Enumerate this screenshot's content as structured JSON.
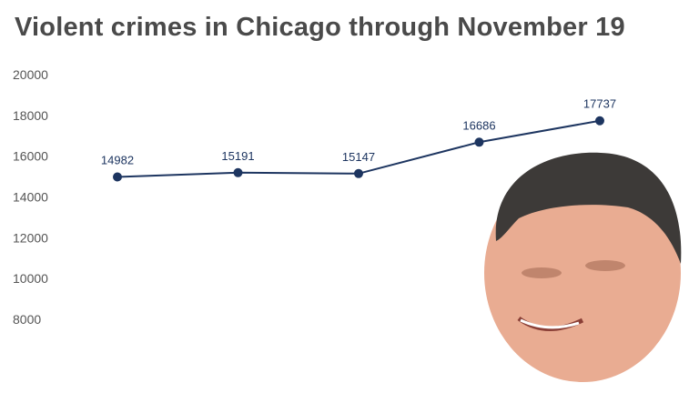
{
  "chart_data": {
    "type": "line",
    "title": "Violent crimes in Chicago through November 19",
    "xlabel": "",
    "ylabel": "",
    "ylim": [
      8000,
      20000
    ],
    "y_ticks": [
      "20000",
      "18000",
      "16000",
      "14000",
      "12000",
      "10000",
      "8000"
    ],
    "grid": false,
    "series": [
      {
        "values": [
          14982,
          15191,
          15147,
          16686,
          17737
        ],
        "data_labels": [
          "14982",
          "15191",
          "15147",
          "16686",
          "17737"
        ],
        "color": "#1d3560"
      }
    ]
  }
}
